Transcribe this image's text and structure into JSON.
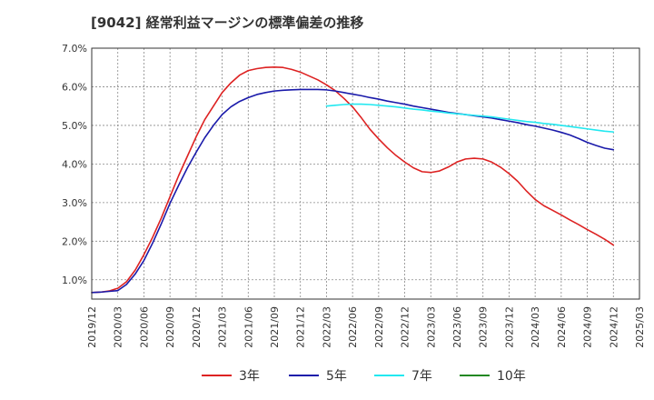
{
  "chart_data": {
    "type": "line",
    "title": "[9042]  経常利益マージンの標準偏差の推移",
    "xlabel": "",
    "ylabel": "",
    "ylim": [
      0.5,
      7.0
    ],
    "y_ticks": [
      {
        "value": 1.0,
        "label": "1.0%"
      },
      {
        "value": 2.0,
        "label": "2.0%"
      },
      {
        "value": 3.0,
        "label": "3.0%"
      },
      {
        "value": 4.0,
        "label": "4.0%"
      },
      {
        "value": 5.0,
        "label": "5.0%"
      },
      {
        "value": 6.0,
        "label": "6.0%"
      },
      {
        "value": 7.0,
        "label": "7.0%"
      }
    ],
    "x_range": [
      "2019-12",
      "2025-03"
    ],
    "x_ticks": [
      "2019/12",
      "2020/03",
      "2020/06",
      "2020/09",
      "2020/12",
      "2021/03",
      "2021/06",
      "2021/09",
      "2021/12",
      "2022/03",
      "2022/06",
      "2022/09",
      "2022/12",
      "2023/03",
      "2023/06",
      "2023/09",
      "2023/12",
      "2024/03",
      "2024/06",
      "2024/09",
      "2024/12",
      "2025/03"
    ],
    "grid": true,
    "legend_position": "bottom",
    "series": [
      {
        "name": "3年",
        "color": "#dd2222",
        "points": [
          [
            "2019-12",
            0.67
          ],
          [
            "2020-01",
            0.68
          ],
          [
            "2020-02",
            0.71
          ],
          [
            "2020-03",
            0.78
          ],
          [
            "2020-04",
            0.95
          ],
          [
            "2020-05",
            1.25
          ],
          [
            "2020-06",
            1.65
          ],
          [
            "2020-07",
            2.1
          ],
          [
            "2020-08",
            2.6
          ],
          [
            "2020-09",
            3.15
          ],
          [
            "2020-10",
            3.7
          ],
          [
            "2020-11",
            4.2
          ],
          [
            "2020-12",
            4.7
          ],
          [
            "2021-01",
            5.15
          ],
          [
            "2021-02",
            5.5
          ],
          [
            "2021-03",
            5.85
          ],
          [
            "2021-04",
            6.1
          ],
          [
            "2021-05",
            6.3
          ],
          [
            "2021-06",
            6.42
          ],
          [
            "2021-07",
            6.47
          ],
          [
            "2021-08",
            6.5
          ],
          [
            "2021-09",
            6.51
          ],
          [
            "2021-10",
            6.5
          ],
          [
            "2021-11",
            6.45
          ],
          [
            "2021-12",
            6.38
          ],
          [
            "2022-01",
            6.28
          ],
          [
            "2022-02",
            6.18
          ],
          [
            "2022-03",
            6.05
          ],
          [
            "2022-04",
            5.9
          ],
          [
            "2022-05",
            5.7
          ],
          [
            "2022-06",
            5.48
          ],
          [
            "2022-07",
            5.2
          ],
          [
            "2022-08",
            4.9
          ],
          [
            "2022-09",
            4.65
          ],
          [
            "2022-10",
            4.42
          ],
          [
            "2022-11",
            4.22
          ],
          [
            "2022-12",
            4.05
          ],
          [
            "2023-01",
            3.9
          ],
          [
            "2023-02",
            3.8
          ],
          [
            "2023-03",
            3.78
          ],
          [
            "2023-04",
            3.82
          ],
          [
            "2023-05",
            3.92
          ],
          [
            "2023-06",
            4.05
          ],
          [
            "2023-07",
            4.13
          ],
          [
            "2023-08",
            4.15
          ],
          [
            "2023-09",
            4.13
          ],
          [
            "2023-10",
            4.05
          ],
          [
            "2023-11",
            3.92
          ],
          [
            "2023-12",
            3.75
          ],
          [
            "2024-01",
            3.55
          ],
          [
            "2024-02",
            3.3
          ],
          [
            "2024-03",
            3.08
          ],
          [
            "2024-04",
            2.92
          ],
          [
            "2024-05",
            2.8
          ],
          [
            "2024-06",
            2.68
          ],
          [
            "2024-07",
            2.55
          ],
          [
            "2024-08",
            2.43
          ],
          [
            "2024-09",
            2.3
          ],
          [
            "2024-10",
            2.18
          ],
          [
            "2024-11",
            2.05
          ],
          [
            "2024-12",
            1.9
          ]
        ]
      },
      {
        "name": "5年",
        "color": "#1a1aaa",
        "points": [
          [
            "2019-12",
            0.67
          ],
          [
            "2020-01",
            0.68
          ],
          [
            "2020-02",
            0.7
          ],
          [
            "2020-03",
            0.72
          ],
          [
            "2020-04",
            0.88
          ],
          [
            "2020-05",
            1.15
          ],
          [
            "2020-06",
            1.5
          ],
          [
            "2020-07",
            1.95
          ],
          [
            "2020-08",
            2.45
          ],
          [
            "2020-09",
            2.98
          ],
          [
            "2020-10",
            3.45
          ],
          [
            "2020-11",
            3.9
          ],
          [
            "2020-12",
            4.3
          ],
          [
            "2021-01",
            4.68
          ],
          [
            "2021-02",
            5.0
          ],
          [
            "2021-03",
            5.28
          ],
          [
            "2021-04",
            5.48
          ],
          [
            "2021-05",
            5.62
          ],
          [
            "2021-06",
            5.72
          ],
          [
            "2021-07",
            5.8
          ],
          [
            "2021-08",
            5.85
          ],
          [
            "2021-09",
            5.89
          ],
          [
            "2021-10",
            5.91
          ],
          [
            "2021-11",
            5.92
          ],
          [
            "2021-12",
            5.93
          ],
          [
            "2022-01",
            5.93
          ],
          [
            "2022-02",
            5.93
          ],
          [
            "2022-03",
            5.92
          ],
          [
            "2022-04",
            5.89
          ],
          [
            "2022-05",
            5.85
          ],
          [
            "2022-06",
            5.81
          ],
          [
            "2022-07",
            5.77
          ],
          [
            "2022-08",
            5.72
          ],
          [
            "2022-09",
            5.68
          ],
          [
            "2022-10",
            5.63
          ],
          [
            "2022-11",
            5.59
          ],
          [
            "2022-12",
            5.55
          ],
          [
            "2023-01",
            5.5
          ],
          [
            "2023-02",
            5.46
          ],
          [
            "2023-03",
            5.42
          ],
          [
            "2023-04",
            5.38
          ],
          [
            "2023-05",
            5.34
          ],
          [
            "2023-06",
            5.31
          ],
          [
            "2023-07",
            5.28
          ],
          [
            "2023-08",
            5.25
          ],
          [
            "2023-09",
            5.22
          ],
          [
            "2023-10",
            5.19
          ],
          [
            "2023-11",
            5.15
          ],
          [
            "2023-12",
            5.11
          ],
          [
            "2024-01",
            5.07
          ],
          [
            "2024-02",
            5.02
          ],
          [
            "2024-03",
            4.98
          ],
          [
            "2024-04",
            4.93
          ],
          [
            "2024-05",
            4.88
          ],
          [
            "2024-06",
            4.82
          ],
          [
            "2024-07",
            4.75
          ],
          [
            "2024-08",
            4.66
          ],
          [
            "2024-09",
            4.56
          ],
          [
            "2024-10",
            4.48
          ],
          [
            "2024-11",
            4.41
          ],
          [
            "2024-12",
            4.37
          ]
        ]
      },
      {
        "name": "7年",
        "color": "#22e8f0",
        "points": [
          [
            "2022-03",
            5.5
          ],
          [
            "2022-04",
            5.52
          ],
          [
            "2022-05",
            5.54
          ],
          [
            "2022-06",
            5.55
          ],
          [
            "2022-07",
            5.55
          ],
          [
            "2022-08",
            5.54
          ],
          [
            "2022-09",
            5.52
          ],
          [
            "2022-10",
            5.5
          ],
          [
            "2022-11",
            5.48
          ],
          [
            "2022-12",
            5.45
          ],
          [
            "2023-01",
            5.42
          ],
          [
            "2023-02",
            5.4
          ],
          [
            "2023-03",
            5.37
          ],
          [
            "2023-04",
            5.35
          ],
          [
            "2023-05",
            5.32
          ],
          [
            "2023-06",
            5.3
          ],
          [
            "2023-07",
            5.28
          ],
          [
            "2023-08",
            5.26
          ],
          [
            "2023-09",
            5.24
          ],
          [
            "2023-10",
            5.22
          ],
          [
            "2023-11",
            5.19
          ],
          [
            "2023-12",
            5.16
          ],
          [
            "2024-01",
            5.13
          ],
          [
            "2024-02",
            5.1
          ],
          [
            "2024-03",
            5.08
          ],
          [
            "2024-04",
            5.05
          ],
          [
            "2024-05",
            5.03
          ],
          [
            "2024-06",
            5.0
          ],
          [
            "2024-07",
            4.97
          ],
          [
            "2024-08",
            4.94
          ],
          [
            "2024-09",
            4.91
          ],
          [
            "2024-10",
            4.88
          ],
          [
            "2024-11",
            4.85
          ],
          [
            "2024-12",
            4.83
          ]
        ]
      },
      {
        "name": "10年",
        "color": "#228822",
        "points": []
      }
    ]
  }
}
